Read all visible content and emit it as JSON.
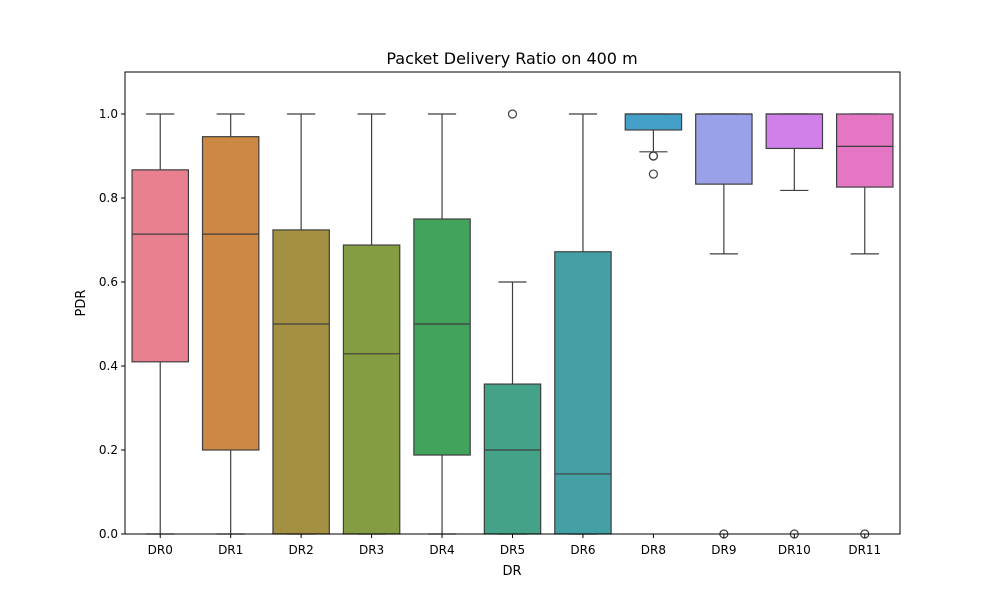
{
  "chart_data": {
    "type": "box",
    "title": "Packet Delivery Ratio on 400 m",
    "xlabel": "DR",
    "ylabel": "PDR",
    "ylim": [
      0.0,
      1.1
    ],
    "yticks": [
      "0.0",
      "0.2",
      "0.4",
      "0.6",
      "0.8",
      "1.0"
    ],
    "grid": false,
    "legend": "none",
    "categories": [
      "DR0",
      "DR1",
      "DR2",
      "DR3",
      "DR4",
      "DR5",
      "DR6",
      "DR8",
      "DR9",
      "DR10",
      "DR11"
    ],
    "colors": [
      "#e8808f",
      "#cc8844",
      "#a39040",
      "#859d42",
      "#41a35c",
      "#43a287",
      "#45a0a6",
      "#44a0c8",
      "#9aa1e8",
      "#d080e8",
      "#e476c4"
    ],
    "boxes": [
      {
        "category": "DR0",
        "whisker_low": 0.0,
        "q1": 0.41,
        "median": 0.714,
        "q3": 0.867,
        "whisker_high": 1.0,
        "outliers": []
      },
      {
        "category": "DR1",
        "whisker_low": 0.0,
        "q1": 0.2,
        "median": 0.714,
        "q3": 0.946,
        "whisker_high": 1.0,
        "outliers": []
      },
      {
        "category": "DR2",
        "whisker_low": 0.0,
        "q1": 0.0,
        "median": 0.5,
        "q3": 0.724,
        "whisker_high": 1.0,
        "outliers": []
      },
      {
        "category": "DR3",
        "whisker_low": 0.0,
        "q1": 0.0,
        "median": 0.429,
        "q3": 0.688,
        "whisker_high": 1.0,
        "outliers": []
      },
      {
        "category": "DR4",
        "whisker_low": 0.0,
        "q1": 0.188,
        "median": 0.5,
        "q3": 0.75,
        "whisker_high": 1.0,
        "outliers": []
      },
      {
        "category": "DR5",
        "whisker_low": 0.0,
        "q1": 0.0,
        "median": 0.2,
        "q3": 0.357,
        "whisker_high": 0.6,
        "outliers": [
          1.0
        ]
      },
      {
        "category": "DR6",
        "whisker_low": 0.0,
        "q1": 0.0,
        "median": 0.143,
        "q3": 0.672,
        "whisker_high": 1.0,
        "outliers": []
      },
      {
        "category": "DR8",
        "whisker_low": 0.91,
        "q1": 0.962,
        "median": 1.0,
        "q3": 1.0,
        "whisker_high": 1.0,
        "outliers": [
          0.9,
          0.9,
          0.857
        ]
      },
      {
        "category": "DR9",
        "whisker_low": 0.667,
        "q1": 0.833,
        "median": 1.0,
        "q3": 1.0,
        "whisker_high": 1.0,
        "outliers": [
          0.0
        ]
      },
      {
        "category": "DR10",
        "whisker_low": 0.818,
        "q1": 0.918,
        "median": 1.0,
        "q3": 1.0,
        "whisker_high": 1.0,
        "outliers": [
          0.0
        ]
      },
      {
        "category": "DR11",
        "whisker_low": 0.667,
        "q1": 0.826,
        "median": 0.923,
        "q3": 1.0,
        "whisker_high": 1.0,
        "outliers": [
          0.0
        ]
      }
    ]
  }
}
